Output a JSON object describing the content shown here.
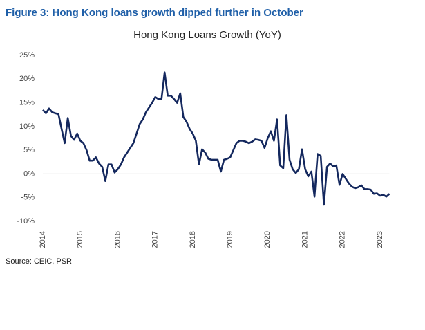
{
  "chart_data": {
    "type": "line",
    "heading": "Figure 3: Hong Kong loans growth dipped further in October",
    "title": "Hong Kong Loans Growth (YoY)",
    "source": "Source: CEIC, PSR",
    "categories": [
      "2014",
      null,
      null,
      null,
      null,
      null,
      null,
      null,
      null,
      null,
      null,
      null,
      "2015",
      null,
      null,
      null,
      null,
      null,
      null,
      null,
      null,
      null,
      null,
      null,
      "2016",
      null,
      null,
      null,
      null,
      null,
      null,
      null,
      null,
      null,
      null,
      null,
      "2017",
      null,
      null,
      null,
      null,
      null,
      null,
      null,
      null,
      null,
      null,
      null,
      "2018",
      null,
      null,
      null,
      null,
      null,
      null,
      null,
      null,
      null,
      null,
      null,
      "2019",
      null,
      null,
      null,
      null,
      null,
      null,
      null,
      null,
      null,
      null,
      null,
      "2020",
      null,
      null,
      null,
      null,
      null,
      null,
      null,
      null,
      null,
      null,
      null,
      "2021",
      null,
      null,
      null,
      null,
      null,
      null,
      null,
      null,
      null,
      null,
      null,
      "2022",
      null,
      null,
      null,
      null,
      null,
      null,
      null,
      null,
      null,
      null,
      null,
      "2023",
      null,
      null,
      null
    ],
    "series": [
      {
        "name": "Hong Kong Loans Growth (YoY)",
        "color": "#14285e",
        "values": [
          13.5,
          12.8,
          13.8,
          13,
          12.8,
          12.6,
          9.5,
          6.5,
          11.8,
          8,
          7.2,
          8.5,
          7,
          6.5,
          5,
          2.8,
          2.8,
          3.5,
          2.2,
          1.5,
          -1.5,
          2,
          2,
          0.3,
          1,
          2,
          3.5,
          4.5,
          5.5,
          6.5,
          8.5,
          10.5,
          11.5,
          13,
          14,
          15,
          16.2,
          15.8,
          15.8,
          21.4,
          16.5,
          16.5,
          15.8,
          15,
          17,
          12,
          11,
          9.5,
          8.5,
          7,
          2,
          5.2,
          4.5,
          3.2,
          3,
          3,
          3,
          0.5,
          3,
          3.2,
          3.5,
          5,
          6.5,
          7,
          7,
          6.8,
          6.5,
          6.8,
          7.3,
          7.2,
          7,
          5.5,
          7.5,
          9,
          7,
          11.5,
          1.8,
          1.2,
          12.4,
          3,
          1,
          0.2,
          1,
          5.2,
          1,
          -0.5,
          0.5,
          -4.8,
          4.2,
          3.8,
          -6.5,
          1.5,
          2.2,
          1.6,
          1.8,
          -2.3,
          0,
          -1,
          -2,
          -2.7,
          -3,
          -2.8,
          -2.4,
          -3.2,
          -3.2,
          -3.3,
          -4.2,
          -4.1,
          -4.6,
          -4.4,
          -4.8,
          -4.2
        ]
      }
    ],
    "ylim": [
      -10,
      25
    ],
    "yticks": [
      {
        "value": -10,
        "label": "-10%"
      },
      {
        "value": -5,
        "label": "-5%"
      },
      {
        "value": 0,
        "label": "0%"
      },
      {
        "value": 5,
        "label": "5%"
      },
      {
        "value": 10,
        "label": "10%"
      },
      {
        "value": 15,
        "label": "15%"
      },
      {
        "value": 20,
        "label": "20%"
      },
      {
        "value": 25,
        "label": "25%"
      }
    ],
    "zero_line": true
  }
}
